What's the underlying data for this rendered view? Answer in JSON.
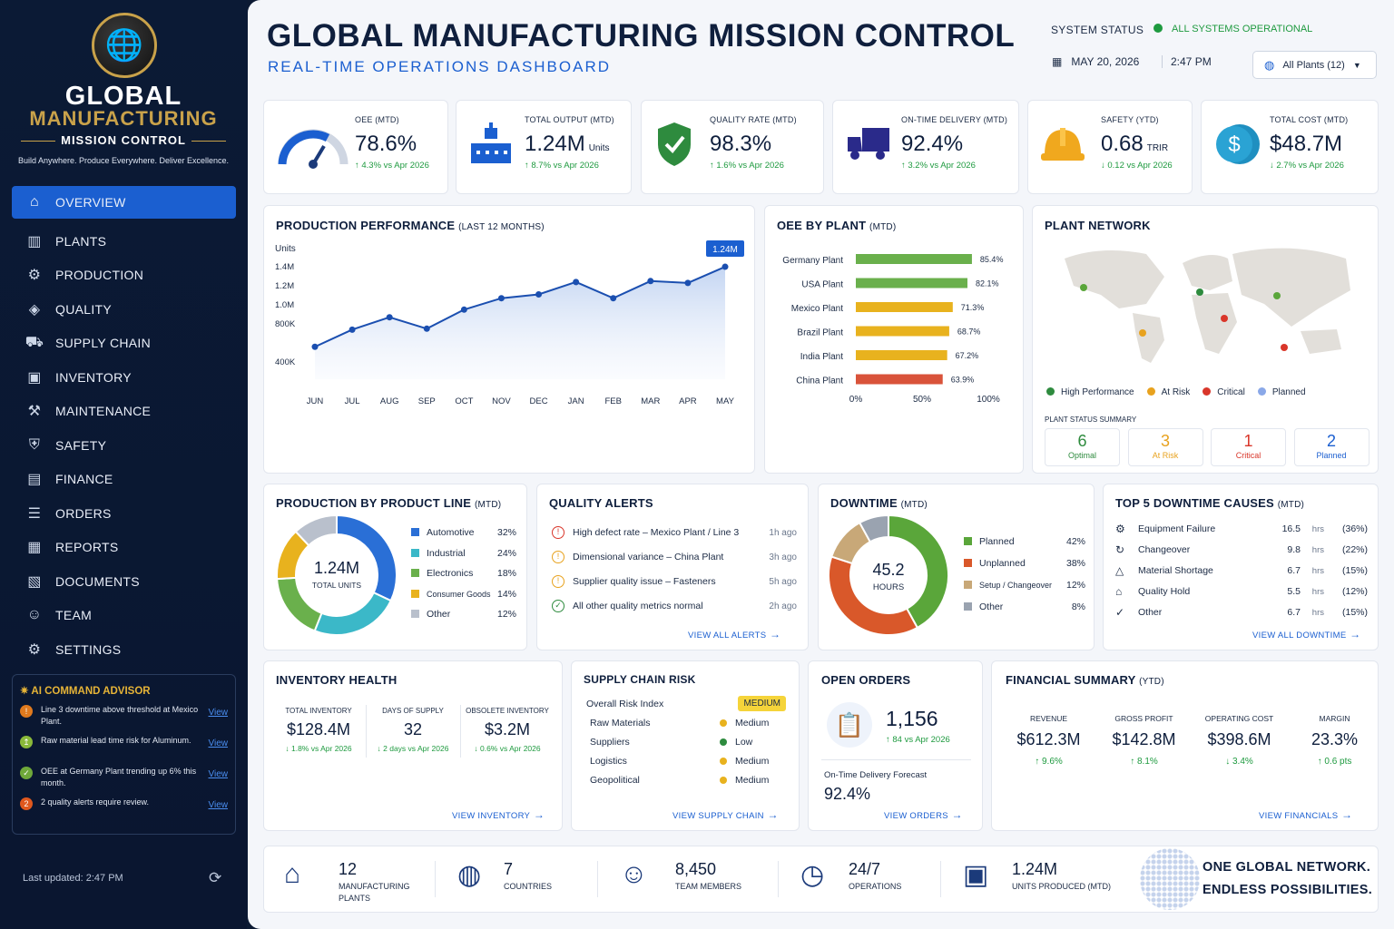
{
  "brand": {
    "line1": "GLOBAL",
    "line2": "MANUFACTURING",
    "line3": "MISSION CONTROL",
    "tagline": "Build Anywhere. Produce Everywhere. Deliver Excellence."
  },
  "nav": [
    "OVERVIEW",
    "PLANTS",
    "PRODUCTION",
    "QUALITY",
    "SUPPLY CHAIN",
    "INVENTORY",
    "MAINTENANCE",
    "SAFETY",
    "FINANCE",
    "ORDERS",
    "REPORTS",
    "DOCUMENTS",
    "TEAM",
    "SETTINGS"
  ],
  "advisor": {
    "title": "AI COMMAND ADVISOR",
    "items": [
      {
        "num": "!",
        "color": "#e07a1e",
        "text": "Line 3 downtime above threshold at Mexico Plant.",
        "link": "View"
      },
      {
        "num": "↥",
        "color": "#8ab93a",
        "text": "Raw material lead time risk for Aluminum.",
        "link": "View"
      },
      {
        "num": "✓",
        "color": "#6fa83a",
        "text": "OEE at Germany Plant trending up 6% this month.",
        "link": "View"
      },
      {
        "num": "2",
        "color": "#e0581e",
        "text": "2 quality alerts require review.",
        "link": "View"
      }
    ]
  },
  "last_updated": "Last updated:  2:47 PM",
  "header": {
    "title": "GLOBAL MANUFACTURING MISSION CONTROL",
    "subtitle": "REAL-TIME OPERATIONS DASHBOARD",
    "system_status_label": "SYSTEM STATUS",
    "system_status": "ALL SYSTEMS OPERATIONAL",
    "date": "MAY 20, 2026",
    "time": "2:47 PM",
    "plant_select": "All Plants (12)"
  },
  "kpis": [
    {
      "label": "OEE (MTD)",
      "value": "78.6%",
      "unit": "",
      "delta": "↑  4.3% vs Apr 2026",
      "up": true
    },
    {
      "label": "TOTAL OUTPUT (MTD)",
      "value": "1.24M",
      "unit": "Units",
      "delta": "↑  8.7% vs Apr 2026",
      "up": true
    },
    {
      "label": "QUALITY RATE (MTD)",
      "value": "98.3%",
      "unit": "",
      "delta": "↑  1.6% vs Apr 2026",
      "up": true
    },
    {
      "label": "ON-TIME DELIVERY (MTD)",
      "value": "92.4%",
      "unit": "",
      "delta": "↑  3.2% vs Apr 2026",
      "up": true
    },
    {
      "label": "SAFETY (YTD)",
      "value": "0.68",
      "unit": "TRIR",
      "delta": "↓  0.12 vs Apr 2026",
      "up": false
    },
    {
      "label": "TOTAL COST (MTD)",
      "value": "$48.7M",
      "unit": "",
      "delta": "↓  2.7% vs Apr 2026",
      "up": false
    }
  ],
  "production_perf": {
    "title": "PRODUCTION PERFORMANCE",
    "period": "(LAST 12 MONTHS)",
    "callout": "1.24M",
    "chart_data": {
      "type": "area",
      "ylabel": "Units",
      "x": [
        "JUN",
        "JUL",
        "AUG",
        "SEP",
        "OCT",
        "NOV",
        "DEC",
        "JAN",
        "FEB",
        "MAR",
        "APR",
        "MAY"
      ],
      "values": [
        550000,
        730000,
        860000,
        740000,
        940000,
        1060000,
        1100000,
        1230000,
        1060000,
        1240000,
        1220000,
        1390000
      ],
      "yticks": [
        "400K",
        "800K",
        "1.0M",
        "1.2M",
        "1.4M"
      ],
      "ytick_values": [
        400000,
        800000,
        1000000,
        1200000,
        1400000
      ]
    }
  },
  "oee_by_plant": {
    "title": "OEE BY PLANT",
    "period": "(MTD)",
    "chart_data": {
      "type": "bar",
      "categories": [
        "Germany Plant",
        "USA Plant",
        "Mexico Plant",
        "Brazil Plant",
        "India Plant",
        "China Plant"
      ],
      "values": [
        85.4,
        82.1,
        71.3,
        68.7,
        67.2,
        63.9
      ],
      "labels": [
        "85.4%",
        "82.1%",
        "71.3%",
        "68.7%",
        "67.2%",
        "63.9%"
      ],
      "colors": [
        "#6ab04c",
        "#6ab04c",
        "#e8b21e",
        "#e8b21e",
        "#e8b21e",
        "#d9533a"
      ],
      "xticks": [
        "0%",
        "50%",
        "100%"
      ],
      "xlim": [
        0,
        100
      ]
    }
  },
  "plant_network": {
    "title": "PLANT NETWORK",
    "legend": [
      {
        "label": "High Performance",
        "color": "#2e8b3e"
      },
      {
        "label": "At Risk",
        "color": "#e8a21e"
      },
      {
        "label": "Critical",
        "color": "#d9362a"
      },
      {
        "label": "Planned",
        "color": "#8aa8e8"
      }
    ],
    "summary_label": "PLANT STATUS SUMMARY",
    "summary": [
      {
        "n": "6",
        "t": "Optimal",
        "color": "#2e8b3e"
      },
      {
        "n": "3",
        "t": "At Risk",
        "color": "#e8a21e"
      },
      {
        "n": "1",
        "t": "Critical",
        "color": "#d9362a"
      },
      {
        "n": "2",
        "t": "Planned",
        "color": "#1b5fd0"
      }
    ]
  },
  "product_line": {
    "title": "PRODUCTION BY PRODUCT LINE",
    "period": "(MTD)",
    "center_value": "1.24M",
    "center_label": "TOTAL UNITS",
    "chart_data": {
      "type": "pie",
      "categories": [
        "Automotive",
        "Industrial",
        "Electronics",
        "Consumer Goods",
        "Other"
      ],
      "values": [
        32,
        24,
        18,
        14,
        12
      ],
      "labels": [
        "32%",
        "24%",
        "18%",
        "14%",
        "12%"
      ],
      "colors": [
        "#2a6fd6",
        "#3bb8c8",
        "#6ab04c",
        "#e8b21e",
        "#b9c0cc"
      ]
    }
  },
  "quality_alerts": {
    "title": "QUALITY ALERTS",
    "items": [
      {
        "icon": "!",
        "color": "#d9362a",
        "text": "High defect rate – Mexico Plant / Line 3",
        "time": "1h ago"
      },
      {
        "icon": "!",
        "color": "#e8a21e",
        "text": "Dimensional variance – China Plant",
        "time": "3h ago"
      },
      {
        "icon": "!",
        "color": "#e8a21e",
        "text": "Supplier quality issue – Fasteners",
        "time": "5h ago"
      },
      {
        "icon": "✓",
        "color": "#2e8b3e",
        "text": "All other quality metrics normal",
        "time": "2h ago"
      }
    ],
    "link": "VIEW ALL ALERTS"
  },
  "downtime": {
    "title": "DOWNTIME",
    "period": "(MTD)",
    "center_value": "45.2",
    "center_label": "HOURS",
    "chart_data": {
      "type": "pie",
      "categories": [
        "Planned",
        "Unplanned",
        "Setup / Changeover",
        "Other"
      ],
      "values": [
        42,
        38,
        12,
        8
      ],
      "labels": [
        "42%",
        "38%",
        "12%",
        "8%"
      ],
      "colors": [
        "#5aa63a",
        "#d9582a",
        "#c8a878",
        "#9aa3b0"
      ]
    }
  },
  "top_downtime": {
    "title": "TOP 5 DOWNTIME CAUSES",
    "period": "(MTD)",
    "items": [
      {
        "icon": "⚙",
        "label": "Equipment Failure",
        "hrs": "16.5",
        "pct": "(36%)"
      },
      {
        "icon": "↻",
        "label": "Changeover",
        "hrs": "9.8",
        "pct": "(22%)"
      },
      {
        "icon": "△",
        "label": "Material Shortage",
        "hrs": "6.7",
        "pct": "(15%)"
      },
      {
        "icon": "⌂",
        "label": "Quality Hold",
        "hrs": "5.5",
        "pct": "(12%)"
      },
      {
        "icon": "✓",
        "label": "Other",
        "hrs": "6.7",
        "pct": "(15%)"
      }
    ],
    "unit": "hrs",
    "link": "VIEW ALL DOWNTIME"
  },
  "inventory": {
    "title": "INVENTORY HEALTH",
    "stats": [
      {
        "label": "TOTAL INVENTORY",
        "value": "$128.4M",
        "delta": "↓  1.8% vs Apr 2026"
      },
      {
        "label": "DAYS OF SUPPLY",
        "value": "32",
        "delta": "↓  2 days vs Apr 2026"
      },
      {
        "label": "OBSOLETE INVENTORY",
        "value": "$3.2M",
        "delta": "↓  0.6% vs Apr 2026"
      }
    ],
    "link": "VIEW INVENTORY"
  },
  "supply_risk": {
    "title": "SUPPLY CHAIN RISK",
    "overall_label": "Overall Risk Index",
    "overall_value": "MEDIUM",
    "items": [
      {
        "label": "Raw Materials",
        "level": "Medium",
        "color": "#e8b21e"
      },
      {
        "label": "Suppliers",
        "level": "Low",
        "color": "#2e8b3e"
      },
      {
        "label": "Logistics",
        "level": "Medium",
        "color": "#e8b21e"
      },
      {
        "label": "Geopolitical",
        "level": "Medium",
        "color": "#e8b21e"
      }
    ],
    "link": "VIEW SUPPLY CHAIN"
  },
  "open_orders": {
    "title": "OPEN ORDERS",
    "value": "1,156",
    "delta": "↑  84 vs Apr 2026",
    "forecast_label": "On-Time Delivery Forecast",
    "forecast_value": "92.4%",
    "link": "VIEW ORDERS"
  },
  "financial": {
    "title": "FINANCIAL SUMMARY",
    "period": "(YTD)",
    "stats": [
      {
        "label": "REVENUE",
        "value": "$612.3M",
        "delta": "↑  9.6%"
      },
      {
        "label": "GROSS PROFIT",
        "value": "$142.8M",
        "delta": "↑  8.1%"
      },
      {
        "label": "OPERATING COST",
        "value": "$398.6M",
        "delta": "↓  3.4%"
      },
      {
        "label": "MARGIN",
        "value": "23.3%",
        "delta": "↑  0.6 pts"
      }
    ],
    "link": "VIEW FINANCIALS"
  },
  "footer": {
    "stats": [
      {
        "icon": "⌂",
        "n": "12",
        "t": "MANUFACTURING PLANTS"
      },
      {
        "icon": "◍",
        "n": "7",
        "t": "COUNTRIES"
      },
      {
        "icon": "☺",
        "n": "8,450",
        "t": "TEAM MEMBERS"
      },
      {
        "icon": "◷",
        "n": "24/7",
        "t": "OPERATIONS"
      },
      {
        "icon": "▣",
        "n": "1.24M",
        "t": "UNITS PRODUCED (MTD)"
      }
    ],
    "slogan1": "ONE GLOBAL NETWORK.",
    "slogan2": "ENDLESS POSSIBILITIES."
  }
}
